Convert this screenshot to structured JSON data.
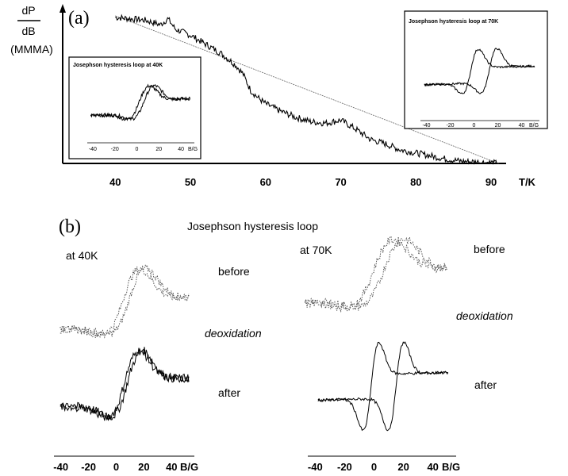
{
  "chart_data": [
    {
      "type": "line",
      "panel_label": "(a)",
      "ylabel_num": "dP",
      "ylabel_den": "dB",
      "ylabel_unit": "(MMMA)",
      "xlabel": "T/K",
      "xticks": [
        "40",
        "50",
        "60",
        "70",
        "80",
        "90"
      ],
      "xlim": [
        33,
        92
      ],
      "series": [
        {
          "x": [
            40,
            42,
            44,
            46,
            47,
            48,
            50,
            52,
            54,
            56,
            57,
            58,
            59,
            60,
            62,
            64,
            66,
            68,
            70,
            72,
            74,
            76,
            78,
            80,
            82,
            84,
            86,
            88,
            90,
            91
          ],
          "y": [
            0.98,
            0.97,
            0.96,
            0.93,
            0.97,
            0.9,
            0.86,
            0.8,
            0.74,
            0.66,
            0.6,
            0.49,
            0.44,
            0.4,
            0.35,
            0.31,
            0.28,
            0.27,
            0.29,
            0.23,
            0.16,
            0.13,
            0.09,
            0.07,
            0.05,
            0.03,
            0.015,
            0.01,
            0.005,
            0.0
          ]
        }
      ],
      "fit_line": {
        "x": [
          40,
          91
        ],
        "y": [
          0.99,
          0.0
        ]
      },
      "insets": [
        {
          "title": "Josephson hysteresis loop at 40K",
          "xticks": [
            "-40",
            "-20",
            "0",
            "20",
            "40"
          ],
          "xunit": "B/G"
        },
        {
          "title": "Josephson hysteresis loop at 70K",
          "xticks": [
            "-40",
            "-20",
            "0",
            "20",
            "40"
          ],
          "xunit": "B/G"
        }
      ]
    },
    {
      "type": "line",
      "panel_label": "(b)",
      "title": "Josephson hysteresis loop",
      "labels": {
        "before": "before",
        "deoxidation": "deoxidation",
        "after": "after"
      },
      "subplots": [
        {
          "temperature": "at 40K",
          "xticks": [
            "-40",
            "-20",
            "0",
            "20",
            "40"
          ],
          "xunit": "B/G",
          "xlim": [
            -45,
            45
          ]
        },
        {
          "temperature": "at 70K",
          "xticks": [
            "-40",
            "-20",
            "0",
            "20",
            "40"
          ],
          "xunit": "B/G",
          "xlim": [
            -45,
            45
          ]
        }
      ]
    }
  ]
}
